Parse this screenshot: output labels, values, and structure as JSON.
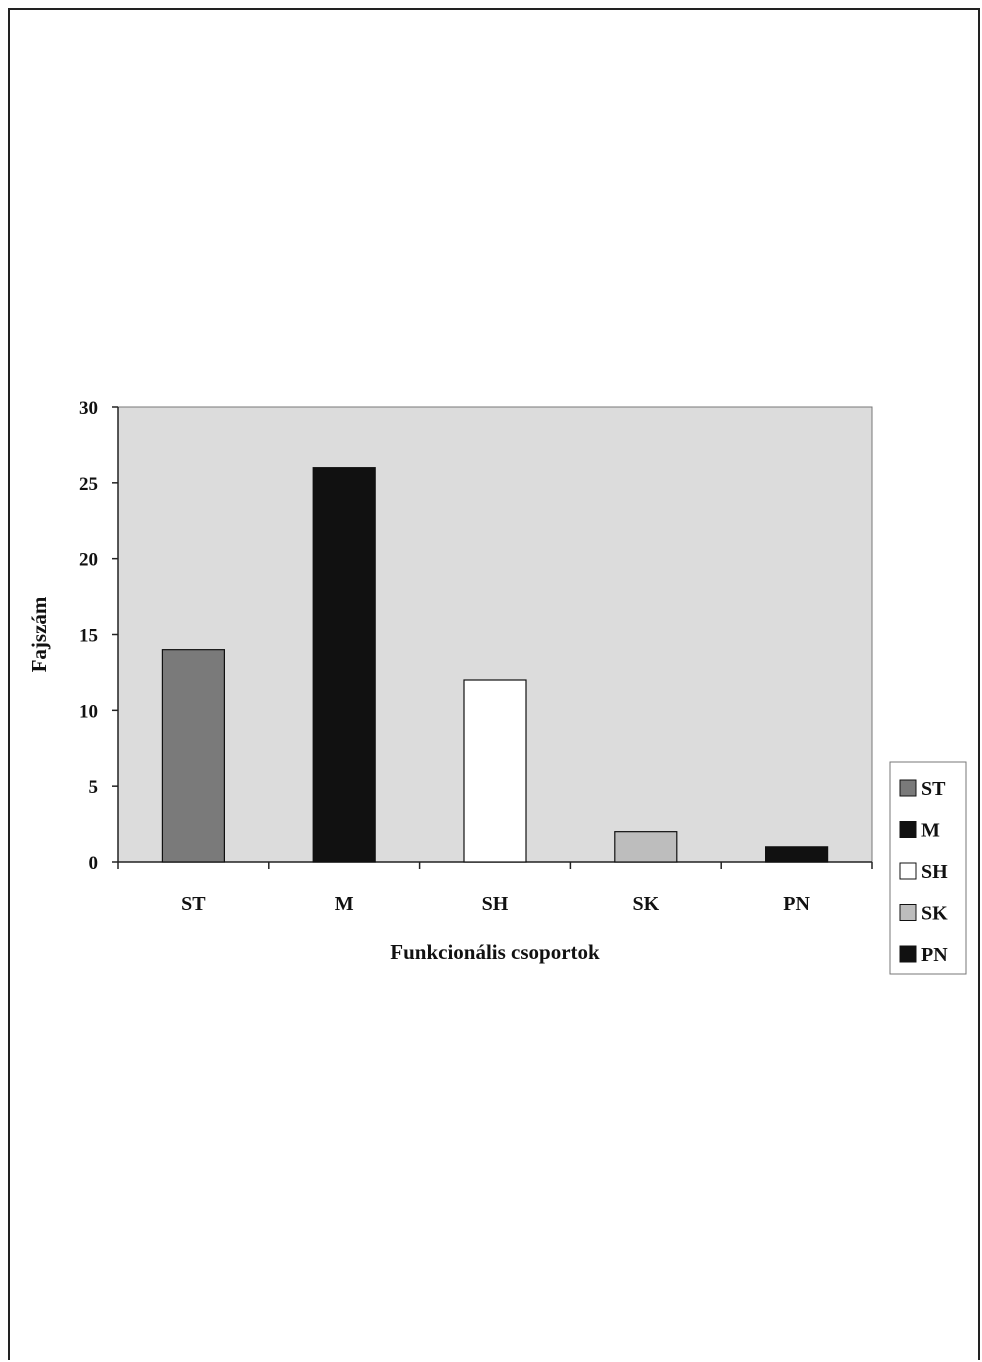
{
  "chart_data": {
    "type": "bar",
    "categories": [
      "ST",
      "M",
      "SH",
      "SK",
      "PN"
    ],
    "values": [
      14,
      26,
      12,
      2,
      1
    ],
    "colors": [
      "#7a7a7a",
      "#111111",
      "#ffffff",
      "#bdbdbd",
      "#111111"
    ],
    "xlabel": "Funkcionális csoportok",
    "ylabel": "Fajszám",
    "ylim": [
      0,
      30
    ],
    "yticks": [
      0,
      5,
      10,
      15,
      20,
      25,
      30
    ],
    "grid": false,
    "plot_background": "#dcdcdc",
    "legend": {
      "position": "right",
      "entries": [
        "ST",
        "M",
        "SH",
        "SK",
        "PN"
      ]
    }
  }
}
